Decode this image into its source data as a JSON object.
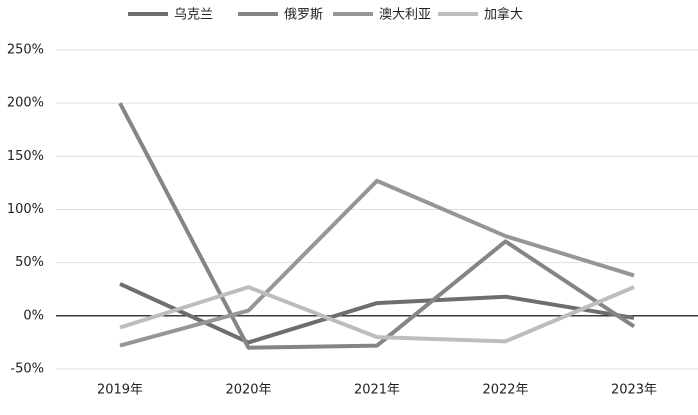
{
  "chart_data": {
    "type": "line",
    "categories": [
      "2019年",
      "2020年",
      "2021年",
      "2022年",
      "2023年"
    ],
    "series": [
      {
        "name": "乌克兰",
        "color": "#6e6e6e",
        "values": [
          30,
          -25,
          12,
          18,
          -2
        ]
      },
      {
        "name": "俄罗斯",
        "color": "#858585",
        "values": [
          200,
          -30,
          -28,
          70,
          -10
        ]
      },
      {
        "name": "澳大利亚",
        "color": "#969696",
        "values": [
          -28,
          5,
          127,
          75,
          38
        ]
      },
      {
        "name": "加拿大",
        "color": "#bdbdbd",
        "values": [
          -11,
          27,
          -20,
          -24,
          27
        ]
      }
    ],
    "ylim": [
      -50,
      250
    ],
    "yticks": [
      {
        "value": -50,
        "label": "-50%"
      },
      {
        "value": 0,
        "label": "0%"
      },
      {
        "value": 50,
        "label": "50%"
      },
      {
        "value": 100,
        "label": "100%"
      },
      {
        "value": 150,
        "label": "150%"
      },
      {
        "value": 200,
        "label": "200%"
      },
      {
        "value": 250,
        "label": "250%"
      }
    ],
    "grid": true,
    "legend": "top"
  }
}
